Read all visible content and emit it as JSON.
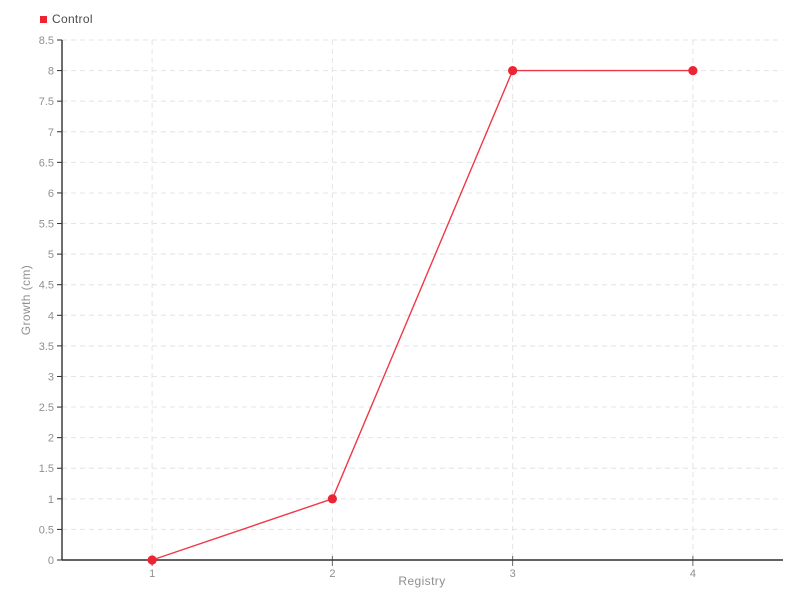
{
  "chart_data": {
    "type": "line",
    "x": [
      1,
      2,
      3,
      4
    ],
    "series": [
      {
        "name": "Control",
        "values": [
          0,
          1,
          8,
          8
        ],
        "color": "#ec2434"
      }
    ],
    "title": "",
    "xlabel": "Registry",
    "ylabel": "Growth (cm)",
    "ylim": [
      0,
      8.5
    ],
    "ytick_step": 0.5,
    "yticks": [
      "0",
      "0.5",
      "1",
      "1.5",
      "2",
      "2.5",
      "3",
      "3.5",
      "4",
      "4.5",
      "5",
      "5.5",
      "6",
      "6.5",
      "7",
      "7.5",
      "8",
      "8.5"
    ],
    "xticks": [
      "1",
      "2",
      "3",
      "4"
    ],
    "grid": "dashed",
    "legend_position": "top-left"
  },
  "legend": {
    "label": "Control"
  },
  "colors": {
    "series_red": "#ec2434",
    "axis_line": "#2f2f2f",
    "grid_line": "#e4e4e4",
    "tick_label": "#8f8f8f",
    "axis_title": "#8f8f8f",
    "legend_text": "#4b4b4b",
    "background": "#ffffff"
  }
}
